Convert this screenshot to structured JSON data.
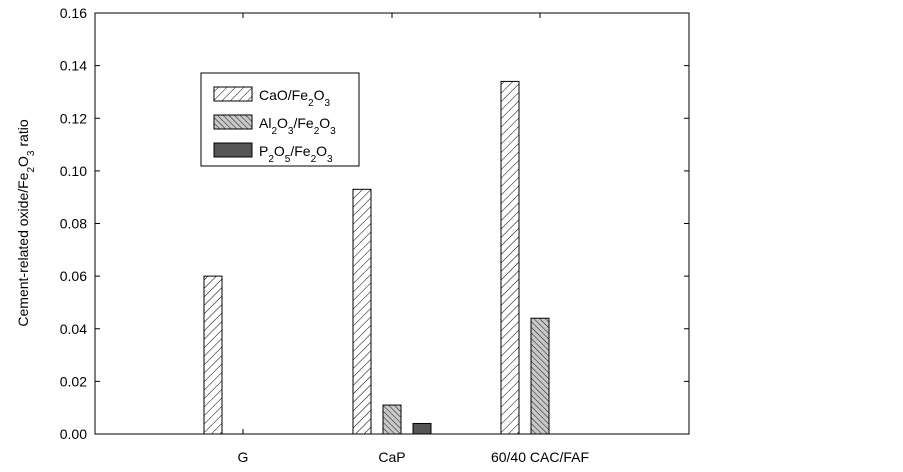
{
  "chart_data": {
    "type": "bar",
    "title": "",
    "xlabel": "",
    "ylabel": {
      "text": "Cement-related oxide/Fe2O3 ratio",
      "parts": [
        {
          "t": "Cement-related oxide/Fe"
        },
        {
          "t": "2",
          "sub": true
        },
        {
          "t": "O"
        },
        {
          "t": "3",
          "sub": true
        },
        {
          "t": " ratio"
        }
      ]
    },
    "ylim": [
      0,
      0.16
    ],
    "yticks": [
      "0.00",
      "0.02",
      "0.04",
      "0.06",
      "0.08",
      "0.10",
      "0.12",
      "0.14",
      "0.16"
    ],
    "ytick_values": [
      0,
      0.02,
      0.04,
      0.06,
      0.08,
      0.1,
      0.12,
      0.14,
      0.16
    ],
    "categories": [
      "G",
      "CaP",
      "60/40 CAC/FAF"
    ],
    "series": [
      {
        "name": "CaO/Fe2O3",
        "name_parts": [
          {
            "t": "CaO/Fe"
          },
          {
            "t": "2",
            "sub": true
          },
          {
            "t": "O"
          },
          {
            "t": "3",
            "sub": true
          }
        ],
        "pattern": "hatch-sparse-backslash",
        "values": [
          0.06,
          0.093,
          0.134
        ]
      },
      {
        "name": "Al2O3/Fe2O3",
        "name_parts": [
          {
            "t": "Al"
          },
          {
            "t": "2",
            "sub": true
          },
          {
            "t": "O"
          },
          {
            "t": "3",
            "sub": true
          },
          {
            "t": "/Fe"
          },
          {
            "t": "2",
            "sub": true
          },
          {
            "t": "O"
          },
          {
            "t": "3",
            "sub": true
          }
        ],
        "pattern": "hatch-dense-slash-gray",
        "values": [
          0,
          0.011,
          0.044
        ]
      },
      {
        "name": "P2O5/Fe2O3",
        "name_parts": [
          {
            "t": "P"
          },
          {
            "t": "2",
            "sub": true
          },
          {
            "t": "O"
          },
          {
            "t": "5",
            "sub": true
          },
          {
            "t": "/Fe"
          },
          {
            "t": "2",
            "sub": true
          },
          {
            "t": "O"
          },
          {
            "t": "3",
            "sub": true
          }
        ],
        "pattern": "solid-dark-gray",
        "values": [
          0,
          0.004,
          0
        ]
      }
    ],
    "grid": false,
    "legend_position": "top-left",
    "colors": {
      "axis": "#000000",
      "hatch_line": "#000000",
      "gray_fill": "#c8c8c8",
      "dark_fill": "#555555",
      "background": "#ffffff"
    }
  }
}
